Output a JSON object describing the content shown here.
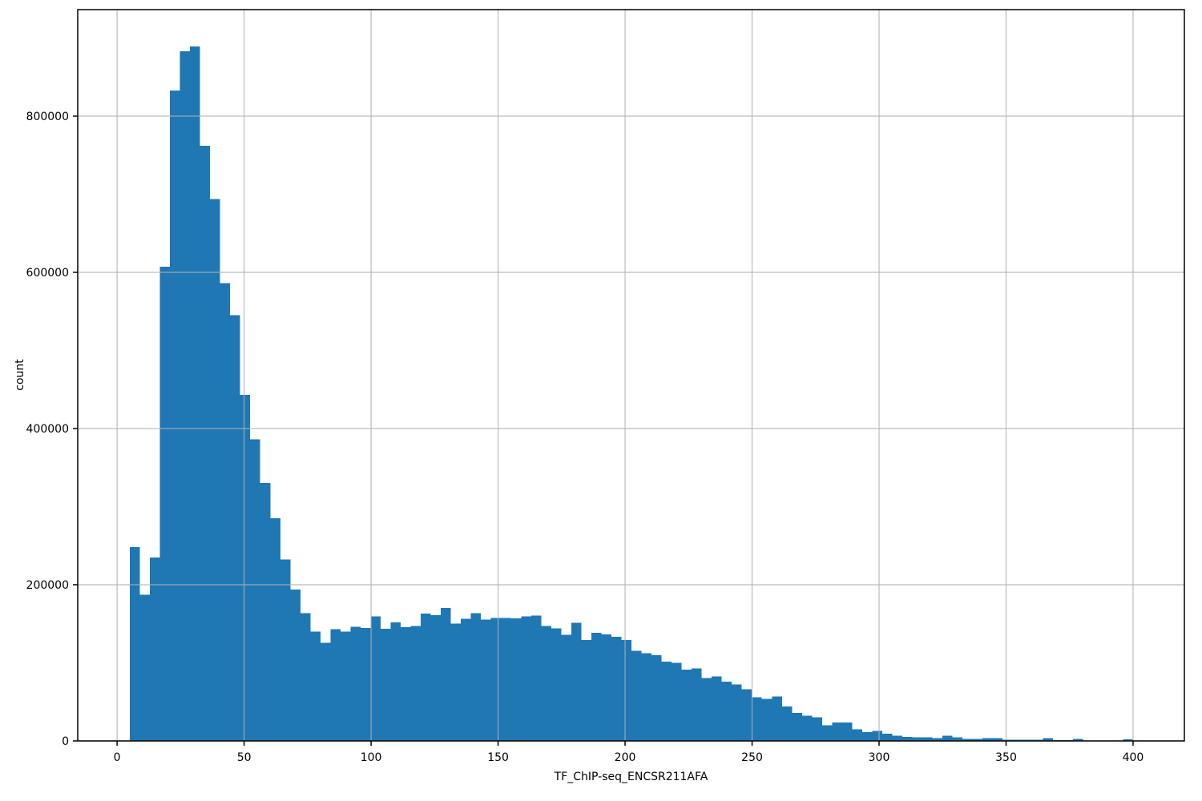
{
  "figure": {
    "background": "#ffffff"
  },
  "chart_data": {
    "type": "bar",
    "subtype": "histogram",
    "title": "",
    "xlabel": "TF_ChIP-seq_ENCSR211AFA",
    "ylabel": "count",
    "legend": null,
    "grid": true,
    "bin_start": 5,
    "bin_width": 3.95,
    "counts": [
      248000,
      187000,
      235000,
      607000,
      833000,
      883000,
      889000,
      762000,
      694000,
      586000,
      545000,
      443000,
      386000,
      330000,
      285000,
      232500,
      194000,
      163500,
      140000,
      125500,
      143000,
      140000,
      146000,
      144500,
      159500,
      143500,
      152000,
      145500,
      147000,
      163000,
      161000,
      170500,
      150500,
      156500,
      163500,
      155500,
      157500,
      157500,
      157000,
      159500,
      160500,
      147000,
      144000,
      136000,
      151500,
      129000,
      138500,
      136500,
      133500,
      129000,
      115500,
      112500,
      109500,
      101500,
      100000,
      91500,
      93000,
      80500,
      82500,
      76000,
      72500,
      66000,
      56000,
      54000,
      57000,
      44000,
      36000,
      32500,
      30500,
      20000,
      23500,
      23500,
      15000,
      11500,
      13000,
      9000,
      6500,
      5000,
      4400,
      4400,
      3400,
      6500,
      4400,
      2400,
      2700,
      3400,
      3800,
      1700,
      1700,
      1400,
      1400,
      3800,
      1000,
      1000,
      2400,
      600,
      500,
      400,
      300,
      2300
    ],
    "x_ticks": [
      0,
      50,
      100,
      150,
      200,
      250,
      300,
      350,
      400
    ],
    "y_ticks": [
      0,
      200000,
      400000,
      600000,
      800000
    ],
    "xlim": [
      -15.5,
      420.2
    ],
    "ylim": [
      0,
      936400
    ],
    "legend_position": "none",
    "colors": {
      "bar": "#1f77b4",
      "grid": "#b0b0b0",
      "spine": "#000000",
      "text": "#000000",
      "background": "#ffffff"
    }
  }
}
